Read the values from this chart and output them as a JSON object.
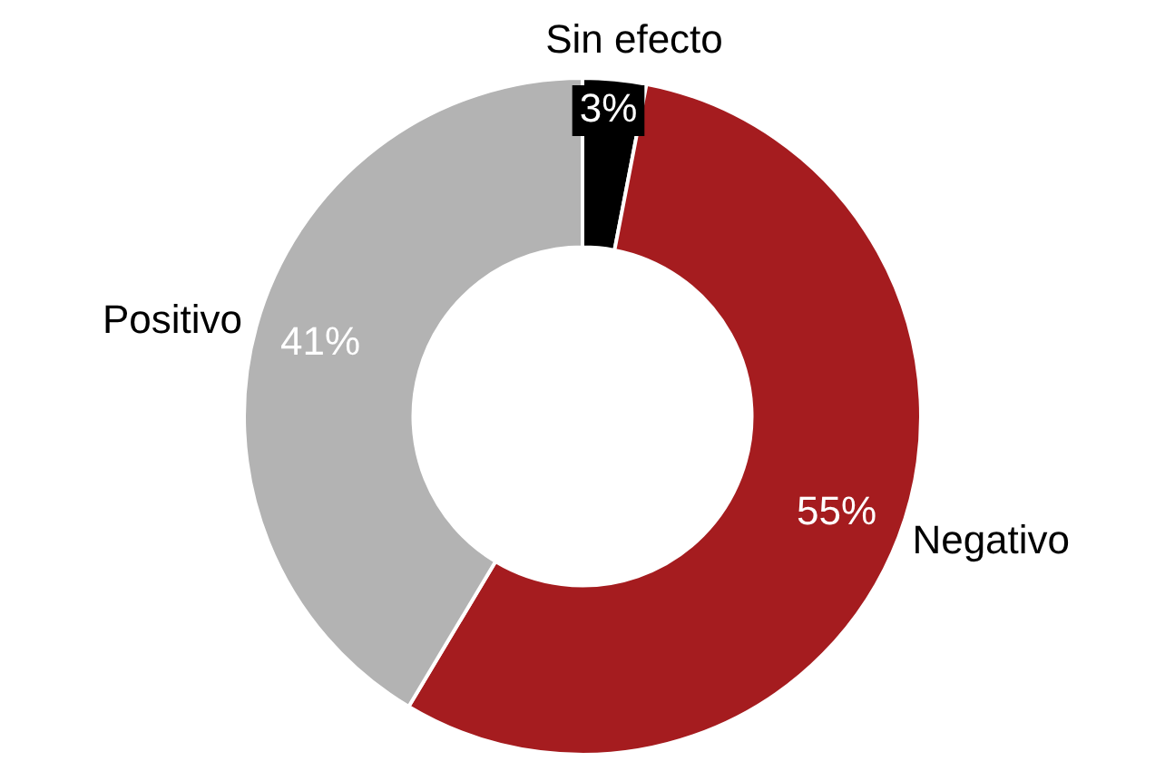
{
  "chart_data": {
    "type": "donut",
    "categories": [
      "Sin efecto",
      "Negativo",
      "Positivo"
    ],
    "values": [
      3,
      55,
      41
    ],
    "colors": [
      "#000000",
      "#a51c1f",
      "#b3b3b3"
    ],
    "value_labels": [
      "3%",
      "55%",
      "41%"
    ],
    "legend": false
  }
}
